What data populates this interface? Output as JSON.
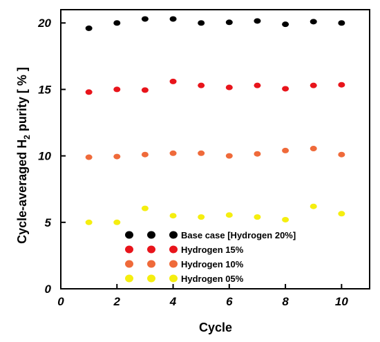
{
  "chart_data": {
    "type": "scatter",
    "title": "",
    "xlabel": "Cycle",
    "ylabel_main": "Cycle-averaged H",
    "ylabel_sub": "2",
    "ylabel_tail": " purity [ % ]",
    "xlim": [
      0,
      11
    ],
    "ylim": [
      0,
      21
    ],
    "xticks": [
      0,
      2,
      4,
      6,
      8,
      10
    ],
    "yticks": [
      0,
      5,
      10,
      15,
      20
    ],
    "grid": false,
    "legend_position": "lower-center",
    "x": [
      1,
      2,
      3,
      4,
      5,
      6,
      7,
      8,
      9,
      10
    ],
    "series": [
      {
        "name": "Base case [Hydrogen 20%]",
        "color": "#000000",
        "values": [
          19.6,
          20.0,
          20.3,
          20.3,
          20.0,
          20.05,
          20.15,
          19.9,
          20.1,
          20.0
        ]
      },
      {
        "name": "Hydrogen 15%",
        "color": "#e8141b",
        "values": [
          14.8,
          15.0,
          14.95,
          15.6,
          15.3,
          15.15,
          15.3,
          15.05,
          15.3,
          15.35
        ]
      },
      {
        "name": "Hydrogen 10%",
        "color": "#ef6a3a",
        "values": [
          9.9,
          9.95,
          10.1,
          10.2,
          10.2,
          10.0,
          10.15,
          10.4,
          10.55,
          10.1
        ]
      },
      {
        "name": "Hydrogen 05%",
        "color": "#f5ee0f",
        "values": [
          5.0,
          5.0,
          6.05,
          5.5,
          5.4,
          5.55,
          5.4,
          5.2,
          6.2,
          5.65
        ]
      }
    ]
  }
}
